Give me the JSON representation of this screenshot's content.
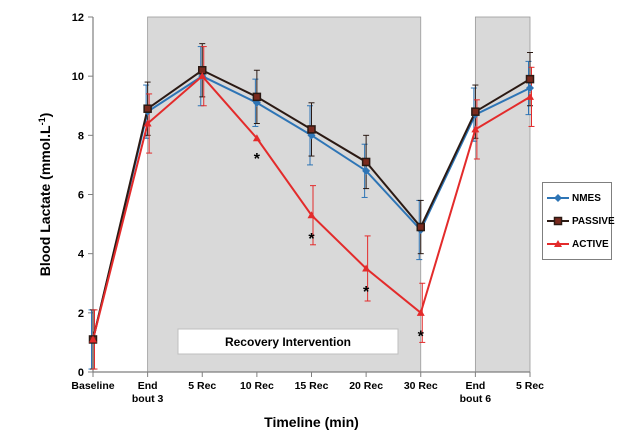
{
  "chart_data": {
    "type": "line",
    "ylabel": "Blood Lactate (mmol.L",
    "ylabel_sup": "-1",
    "ylabel_close": ")",
    "xlabel": "Timeline (min)",
    "ylim": [
      0,
      12
    ],
    "yticks": [
      "0",
      "2",
      "4",
      "6",
      "8",
      "10",
      "12"
    ],
    "categories": [
      [
        "Baseline"
      ],
      [
        "End",
        "bout 3"
      ],
      [
        "5 Rec"
      ],
      [
        "10 Rec"
      ],
      [
        "15 Rec"
      ],
      [
        "20 Rec"
      ],
      [
        "30 Rec"
      ],
      [
        "End",
        "bout 6"
      ],
      [
        "5 Rec"
      ]
    ],
    "shaded_regions": [
      {
        "from_index": 1,
        "to_index": 6
      },
      {
        "from_index": 7,
        "to_index": 8
      }
    ],
    "annotation_box": "Recovery Intervention",
    "significance_marks": [
      {
        "index": 3,
        "value": 7.3,
        "text": "*"
      },
      {
        "index": 4,
        "value": 4.6,
        "text": "*"
      },
      {
        "index": 5,
        "value": 2.8,
        "text": "*"
      },
      {
        "index": 6,
        "value": 1.3,
        "text": "*"
      }
    ],
    "series": [
      {
        "name": "NMES",
        "color": "#2e75b6",
        "marker": "diamond",
        "values": [
          1.1,
          8.8,
          10.0,
          9.1,
          8.0,
          6.8,
          4.8,
          8.7,
          9.6
        ],
        "errors": [
          1.0,
          0.9,
          1.0,
          0.8,
          1.0,
          0.9,
          1.0,
          0.9,
          0.9
        ]
      },
      {
        "name": "PASSIVE",
        "color": "#2b1a14",
        "marker": "square",
        "values": [
          1.1,
          8.9,
          10.2,
          9.3,
          8.2,
          7.1,
          4.9,
          8.8,
          9.9
        ],
        "errors": [
          1.0,
          0.9,
          0.9,
          0.9,
          0.9,
          0.9,
          0.9,
          0.9,
          0.9
        ]
      },
      {
        "name": "ACTIVE",
        "color": "#e32b2b",
        "marker": "triangle",
        "values": [
          1.1,
          8.4,
          10.0,
          7.9,
          5.3,
          3.5,
          2.0,
          8.2,
          9.3
        ],
        "errors": [
          1.0,
          1.0,
          1.0,
          0.0,
          1.0,
          1.1,
          1.0,
          1.0,
          1.0
        ]
      }
    ]
  }
}
